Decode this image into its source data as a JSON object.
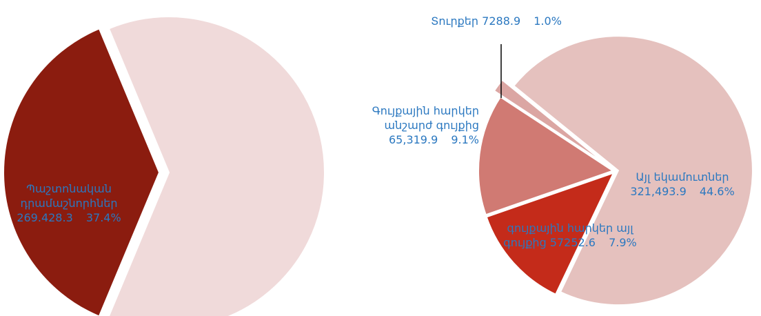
{
  "chart_data": [
    {
      "type": "pie",
      "categories": [
        "Պաշտոնական դրամաշնորհներ",
        null
      ],
      "values": [
        37.4,
        62.6
      ],
      "value_labels": [
        "37.4%",
        null
      ],
      "amount_labels": [
        "269.428.3",
        null
      ],
      "colors": [
        "#8b1c0f",
        "#f0dada"
      ]
    },
    {
      "type": "pie",
      "categories": [
        "Այլ եկամուտներ",
        "գույքային հարկեր այլ գույքից",
        "Գույքային հարկեր անշարժ գույքից",
        "Տուրքեր"
      ],
      "values": [
        44.6,
        7.9,
        9.1,
        1.0
      ],
      "value_labels": [
        "44.6%",
        "7.9%",
        "9.1%",
        "1.0%"
      ],
      "amount_labels": [
        "321,493.9",
        "57252.6",
        "65,319.9",
        "7288.9"
      ],
      "colors": [
        "#e5c1be",
        "#c42b1a",
        "#d07a73",
        "#dba6a3"
      ]
    }
  ]
}
